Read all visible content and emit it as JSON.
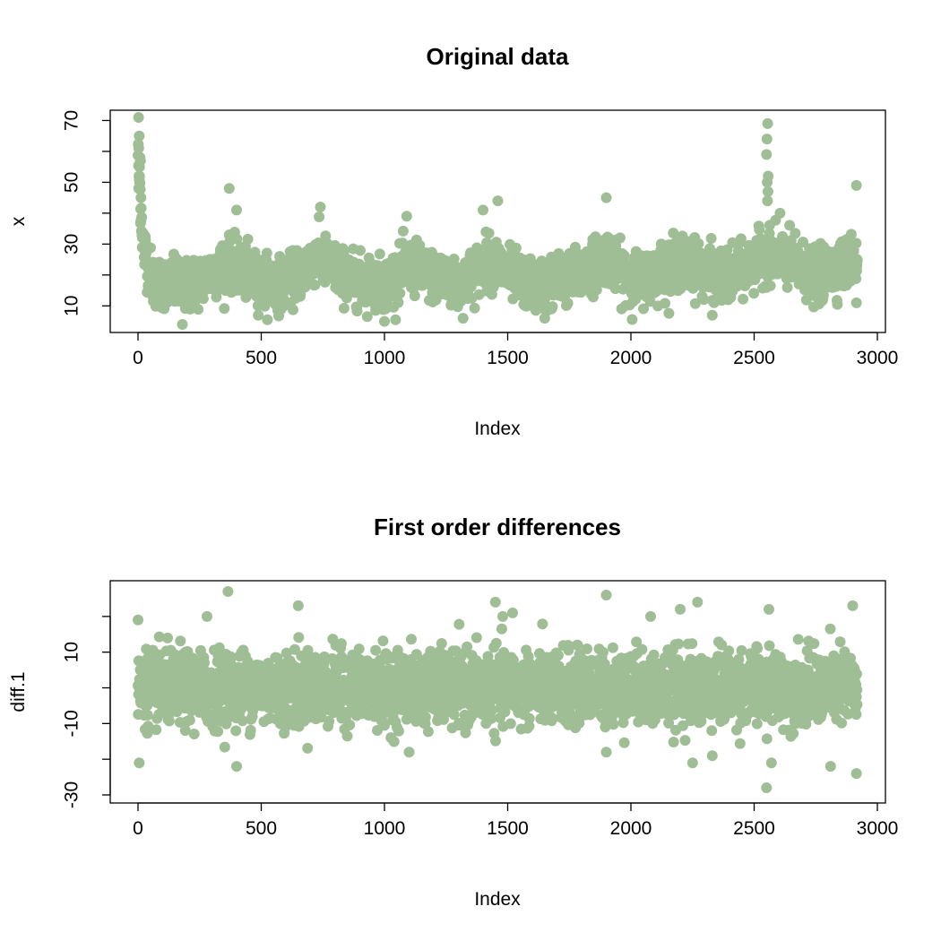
{
  "point_color": "#9fbe95",
  "chart_data": [
    {
      "type": "scatter",
      "title": "Original data",
      "xlabel": "Index",
      "ylabel": "x",
      "xlim": [
        0,
        2920
      ],
      "ylim": [
        4,
        71
      ],
      "x_ticks": [
        0,
        500,
        1000,
        1500,
        2000,
        2500,
        3000
      ],
      "y_ticks": [
        10,
        20,
        30,
        40,
        50,
        60,
        70
      ],
      "y_tick_labels_shown": [
        "10",
        "30",
        "50",
        "70"
      ],
      "n_points": 2920,
      "series_level_by_index": [
        [
          0,
          60
        ],
        [
          20,
          30
        ],
        [
          60,
          18
        ],
        [
          200,
          16
        ],
        [
          370,
          24
        ],
        [
          500,
          18
        ],
        [
          600,
          17
        ],
        [
          730,
          26
        ],
        [
          850,
          19
        ],
        [
          1000,
          17
        ],
        [
          1100,
          23
        ],
        [
          1300,
          16
        ],
        [
          1420,
          25
        ],
        [
          1600,
          16
        ],
        [
          1780,
          20
        ],
        [
          1900,
          26
        ],
        [
          2000,
          18
        ],
        [
          2200,
          24
        ],
        [
          2400,
          19
        ],
        [
          2560,
          27
        ],
        [
          2650,
          24
        ],
        [
          2750,
          19
        ],
        [
          2900,
          25
        ],
        [
          2920,
          24
        ]
      ],
      "noise_sd": 4,
      "notable_points": [
        [
          2,
          71
        ],
        [
          5,
          65
        ],
        [
          8,
          58
        ],
        [
          10,
          57
        ],
        [
          6,
          55
        ],
        [
          4,
          52
        ],
        [
          3,
          48
        ],
        [
          12,
          45
        ],
        [
          370,
          48
        ],
        [
          400,
          41
        ],
        [
          740,
          42
        ],
        [
          1090,
          39
        ],
        [
          1400,
          41
        ],
        [
          1460,
          44
        ],
        [
          1900,
          45
        ],
        [
          2555,
          69
        ],
        [
          2552,
          64
        ],
        [
          2550,
          59
        ],
        [
          2557,
          52
        ],
        [
          2553,
          50
        ],
        [
          2556,
          47
        ],
        [
          2554,
          44
        ],
        [
          2605,
          40
        ],
        [
          2915,
          49
        ],
        [
          180,
          4
        ],
        [
          1000,
          5
        ],
        [
          1650,
          6
        ],
        [
          2330,
          7
        ],
        [
          2915,
          11
        ]
      ]
    },
    {
      "type": "scatter",
      "title": "First order differences",
      "xlabel": "Index",
      "ylabel": "diff.1",
      "xlim": [
        0,
        2920
      ],
      "ylim": [
        -30,
        28
      ],
      "x_ticks": [
        0,
        500,
        1000,
        1500,
        2000,
        2500,
        3000
      ],
      "y_ticks": [
        -30,
        -20,
        -10,
        0,
        10,
        20
      ],
      "y_tick_labels_shown": [
        "-30",
        "-10",
        "10"
      ],
      "n_points": 2919,
      "center": 0,
      "noise_sd": 5,
      "notable_points": [
        [
          365,
          27
        ],
        [
          1900,
          26
        ],
        [
          1450,
          24
        ],
        [
          2270,
          24
        ],
        [
          650,
          23
        ],
        [
          2560,
          22
        ],
        [
          0,
          19
        ],
        [
          280,
          20
        ],
        [
          2080,
          20
        ],
        [
          1480,
          20
        ],
        [
          2900,
          23
        ],
        [
          1520,
          21
        ],
        [
          2200,
          22
        ],
        [
          5,
          -21
        ],
        [
          400,
          -22
        ],
        [
          1100,
          -18
        ],
        [
          2250,
          -21
        ],
        [
          2570,
          -21
        ],
        [
          2810,
          -22
        ],
        [
          2915,
          -24
        ],
        [
          2550,
          -28
        ],
        [
          2330,
          -19
        ],
        [
          1900,
          -18
        ]
      ]
    }
  ]
}
